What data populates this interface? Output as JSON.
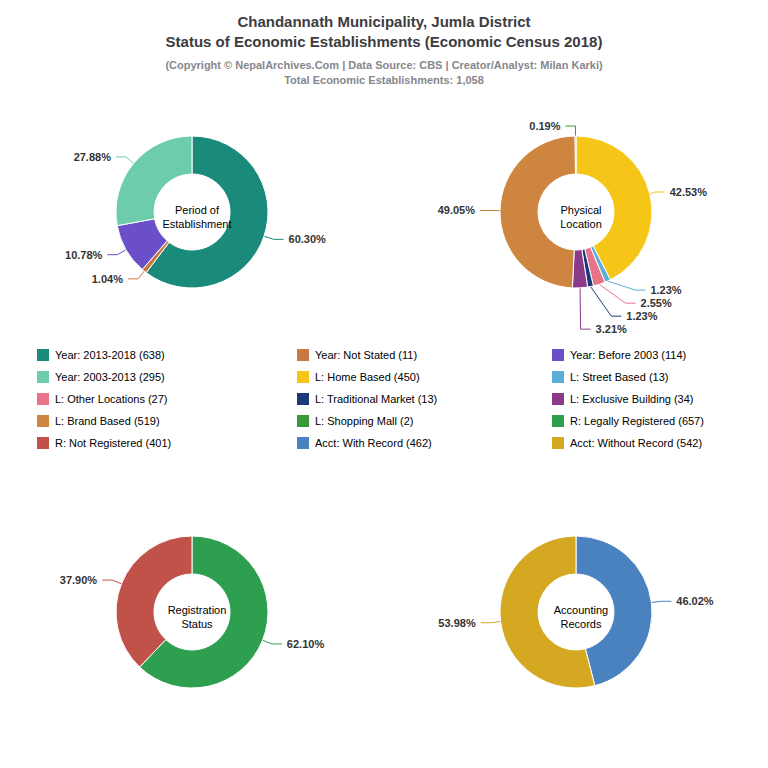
{
  "title": "Chandannath Municipality, Jumla District\nStatus of Economic Establishments (Economic Census 2018)",
  "subtitle": "(Copyright © NepalArchives.Com | Data Source: CBS | Creator/Analyst: Milan Karki)\nTotal Economic Establishments: 1,058",
  "legend": "center",
  "chart_data": [
    {
      "type": "pie",
      "title": "Period of\nEstablishment",
      "categories": [
        "Year: 2013-2018 (638)",
        "Year: Not Stated (11)",
        "Year: Before 2003 (114)",
        "Year: 2003-2013 (295)"
      ],
      "values": [
        60.3,
        1.04,
        10.78,
        27.88
      ],
      "value_labels": [
        "60.30%",
        "1.04%",
        "10.78%",
        "27.88%"
      ],
      "colors": [
        "#1a8a7a",
        "#c87941",
        "#6a4fc8",
        "#6dcdaa"
      ],
      "data_labels": true
    },
    {
      "type": "pie",
      "title": "Physical\nLocation",
      "categories": [
        "L: Home Based (450)",
        "L: Street Based (13)",
        "L: Other Locations (27)",
        "L: Traditional Market (13)",
        "L: Exclusive Building (34)",
        "L: Brand Based (519)",
        "L: Shopping Mall (2)"
      ],
      "values": [
        42.53,
        1.23,
        2.55,
        1.23,
        3.21,
        49.05,
        0.19
      ],
      "value_labels": [
        "42.53%",
        "1.23%",
        "2.55%",
        "1.23%",
        "3.21%",
        "49.05%",
        "0.19%"
      ],
      "colors": [
        "#f5c518",
        "#5bafd6",
        "#e8748a",
        "#1a3a7a",
        "#8B3a8a",
        "#cd8540",
        "#3a9a3a"
      ],
      "data_labels": true
    },
    {
      "type": "pie",
      "title": "Registration\nStatus",
      "categories": [
        "R: Legally Registered (657)",
        "R: Not Registered (401)"
      ],
      "values": [
        62.1,
        37.9
      ],
      "value_labels": [
        "62.10%",
        "37.90%"
      ],
      "colors": [
        "#2e9e4f",
        "#c0524a"
      ],
      "data_labels": true
    },
    {
      "type": "pie",
      "title": "Accounting\nRecords",
      "categories": [
        "Acct: With Record (462)",
        "Acct: Without Record (542)"
      ],
      "values": [
        46.02,
        53.98
      ],
      "value_labels": [
        "46.02%",
        "53.98%"
      ],
      "colors": [
        "#4a82c0",
        "#d4a820"
      ],
      "data_labels": true
    }
  ]
}
